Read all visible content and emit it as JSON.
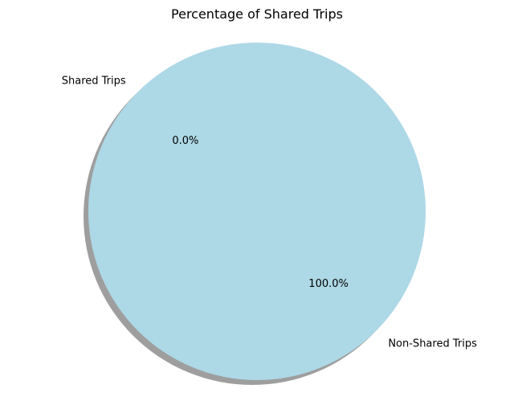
{
  "chart_data": {
    "type": "pie",
    "title": "Percentage of Shared Trips",
    "labels": [
      "Shared Trips",
      "Non-Shared Trips"
    ],
    "values": [
      0.0,
      100.0
    ],
    "percent_labels": [
      "0.0%",
      "100.0%"
    ],
    "colors": [
      "#c4a882",
      "#add8e6"
    ],
    "shadow": true,
    "legend": "none"
  }
}
